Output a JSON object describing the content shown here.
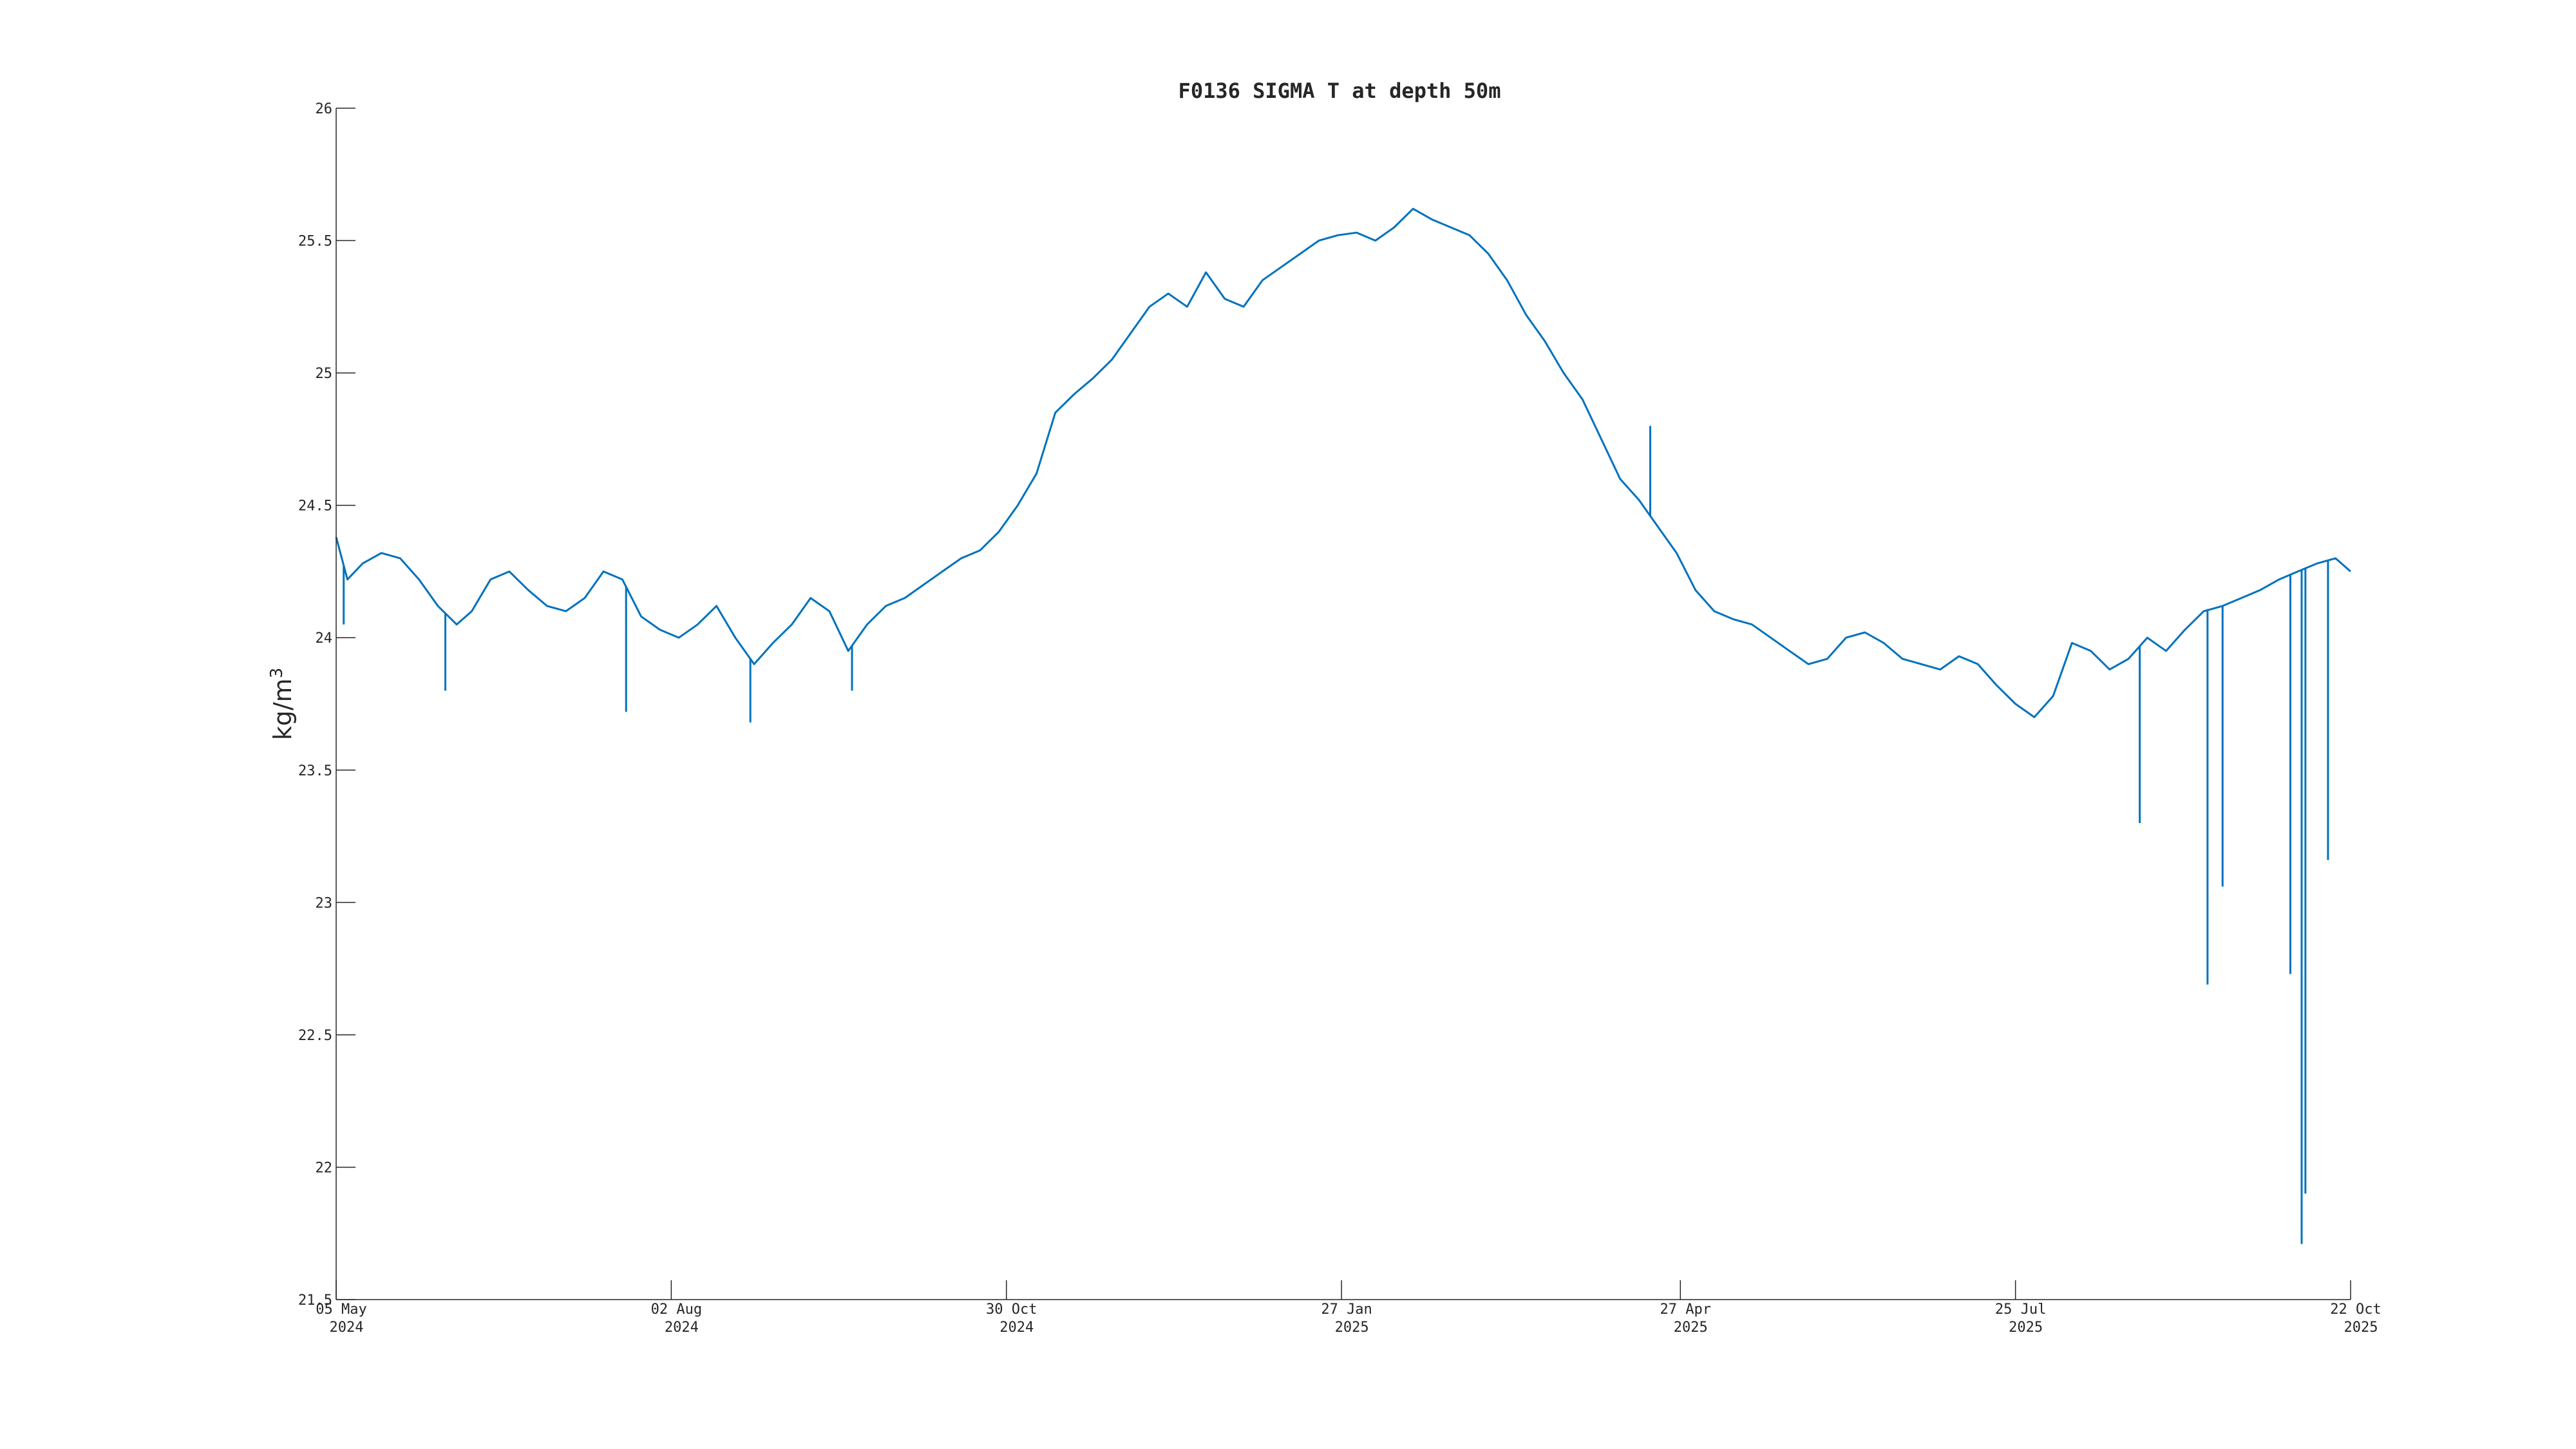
{
  "chart_data": {
    "type": "line",
    "title": "F0136 SIGMA T at depth 50m",
    "xlabel": "",
    "ylabel": "kg/m",
    "ylabel_superscript": "3",
    "ylim": [
      21.5,
      26
    ],
    "xlim": [
      "2024-05-05",
      "2025-10-22"
    ],
    "yticks": [
      {
        "value": 21.5,
        "label": "21.5"
      },
      {
        "value": 22,
        "label": "22"
      },
      {
        "value": 22.5,
        "label": "22.5"
      },
      {
        "value": 23,
        "label": "23"
      },
      {
        "value": 23.5,
        "label": "23.5"
      },
      {
        "value": 24,
        "label": "24"
      },
      {
        "value": 24.5,
        "label": "24.5"
      },
      {
        "value": 25,
        "label": "25"
      },
      {
        "value": 25.5,
        "label": "25.5"
      },
      {
        "value": 26,
        "label": "26"
      }
    ],
    "xticks": [
      {
        "date": "2024-05-05",
        "label": "05 May",
        "label2": "2024"
      },
      {
        "date": "2024-08-02",
        "label": "02 Aug",
        "label2": "2024"
      },
      {
        "date": "2024-10-30",
        "label": "30 Oct",
        "label2": "2024"
      },
      {
        "date": "2025-01-27",
        "label": "27 Jan",
        "label2": "2025"
      },
      {
        "date": "2025-04-27",
        "label": "27 Apr",
        "label2": "2025"
      },
      {
        "date": "2025-07-25",
        "label": "25 Jul",
        "label2": "2025"
      },
      {
        "date": "2025-10-22",
        "label": "22 Oct",
        "label2": "2025"
      }
    ],
    "grid": false,
    "line_color": "#0072BD",
    "series": [
      {
        "x": [
          "2024-05-05",
          "2024-05-08",
          "2024-05-12",
          "2024-05-17",
          "2024-05-22",
          "2024-05-27",
          "2024-06-01",
          "2024-06-06",
          "2024-06-10",
          "2024-06-15",
          "2024-06-20",
          "2024-06-25",
          "2024-06-30",
          "2024-07-05",
          "2024-07-10",
          "2024-07-15",
          "2024-07-20",
          "2024-07-25",
          "2024-07-30",
          "2024-08-04",
          "2024-08-09",
          "2024-08-14",
          "2024-08-19",
          "2024-08-24",
          "2024-08-29",
          "2024-09-03",
          "2024-09-08",
          "2024-09-13",
          "2024-09-18",
          "2024-09-23",
          "2024-09-28",
          "2024-10-03",
          "2024-10-08",
          "2024-10-13",
          "2024-10-18",
          "2024-10-23",
          "2024-10-28",
          "2024-11-02",
          "2024-11-07",
          "2024-11-12",
          "2024-11-17",
          "2024-11-22",
          "2024-11-27",
          "2024-12-02",
          "2024-12-07",
          "2024-12-12",
          "2024-12-17",
          "2024-12-22",
          "2024-12-27",
          "2025-01-01",
          "2025-01-06",
          "2025-01-11",
          "2025-01-16",
          "2025-01-21",
          "2025-01-26",
          "2025-01-31",
          "2025-02-05",
          "2025-02-10",
          "2025-02-15",
          "2025-02-20",
          "2025-02-25",
          "2025-03-02",
          "2025-03-07",
          "2025-03-12",
          "2025-03-17",
          "2025-03-22",
          "2025-03-27",
          "2025-04-01",
          "2025-04-06",
          "2025-04-11",
          "2025-04-16",
          "2025-04-21",
          "2025-04-26",
          "2025-05-01",
          "2025-05-06",
          "2025-05-11",
          "2025-05-16",
          "2025-05-21",
          "2025-05-26",
          "2025-05-31",
          "2025-06-05",
          "2025-06-10",
          "2025-06-15",
          "2025-06-20",
          "2025-06-25",
          "2025-06-30",
          "2025-07-05",
          "2025-07-10",
          "2025-07-15",
          "2025-07-20",
          "2025-07-25",
          "2025-07-30",
          "2025-08-04",
          "2025-08-09",
          "2025-08-14",
          "2025-08-19",
          "2025-08-24",
          "2025-08-29",
          "2025-09-03",
          "2025-09-08",
          "2025-09-13",
          "2025-09-18",
          "2025-09-23",
          "2025-09-28",
          "2025-10-03",
          "2025-10-08",
          "2025-10-13",
          "2025-10-18",
          "2025-10-22"
        ],
        "y": [
          24.38,
          24.22,
          24.28,
          24.32,
          24.3,
          24.22,
          24.12,
          24.05,
          24.1,
          24.22,
          24.25,
          24.18,
          24.12,
          24.1,
          24.15,
          24.25,
          24.22,
          24.08,
          24.03,
          24.0,
          24.05,
          24.12,
          24.0,
          23.9,
          23.98,
          24.05,
          24.15,
          24.1,
          23.95,
          24.05,
          24.12,
          24.15,
          24.2,
          24.25,
          24.3,
          24.33,
          24.4,
          24.5,
          24.62,
          24.85,
          24.92,
          24.98,
          25.05,
          25.15,
          25.25,
          25.3,
          25.25,
          25.38,
          25.28,
          25.25,
          25.35,
          25.4,
          25.45,
          25.5,
          25.52,
          25.53,
          25.5,
          25.55,
          25.62,
          25.58,
          25.55,
          25.52,
          25.45,
          25.35,
          25.22,
          25.12,
          25.0,
          24.9,
          24.75,
          24.6,
          24.52,
          24.42,
          24.32,
          24.18,
          24.1,
          24.07,
          24.05,
          24.0,
          23.95,
          23.9,
          23.92,
          24.0,
          24.02,
          23.98,
          23.92,
          23.9,
          23.88,
          23.93,
          23.9,
          23.82,
          23.75,
          23.7,
          23.78,
          23.98,
          23.95,
          23.88,
          23.92,
          24.0,
          23.95,
          24.03,
          24.1,
          24.12,
          24.15,
          24.18,
          24.22,
          24.25,
          24.28,
          24.3,
          24.25
        ]
      }
    ],
    "spikes": [
      {
        "x": "2024-05-07",
        "y": 24.05
      },
      {
        "x": "2024-06-03",
        "y": 23.8
      },
      {
        "x": "2024-07-21",
        "y": 23.72
      },
      {
        "x": "2024-08-23",
        "y": 23.68
      },
      {
        "x": "2024-09-19",
        "y": 23.8
      },
      {
        "x": "2025-04-19",
        "y": 24.8
      },
      {
        "x": "2025-08-27",
        "y": 23.3
      },
      {
        "x": "2025-09-14",
        "y": 22.69
      },
      {
        "x": "2025-09-18",
        "y": 23.06
      },
      {
        "x": "2025-10-06",
        "y": 22.73
      },
      {
        "x": "2025-10-09",
        "y": 21.71
      },
      {
        "x": "2025-10-10",
        "y": 21.9
      },
      {
        "x": "2025-10-16",
        "y": 23.16
      }
    ]
  }
}
